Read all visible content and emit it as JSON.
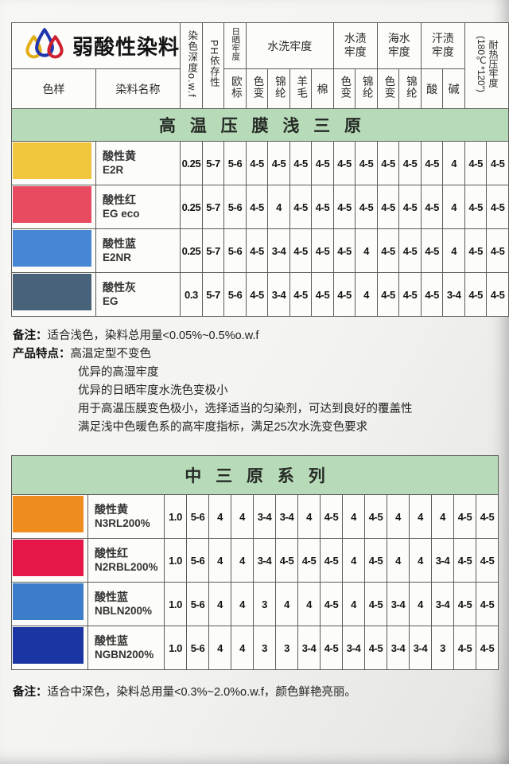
{
  "brand": {
    "name": "弱酸性染料"
  },
  "logo": {
    "drop_colors": [
      "#e2ae15",
      "#2036ad",
      "#cf2030"
    ]
  },
  "columns": {
    "sample": "色样",
    "name": "染料名称",
    "depth": "染色深度o.w.f",
    "ph": "PH依存性",
    "sun_group": "日晒牢度",
    "eu": "欧标",
    "wash_group": "水洗牢度",
    "color_change": "色变",
    "nylon": "锦纶",
    "wool": "羊毛",
    "cotton": "棉",
    "water_group": "水渍牢度",
    "sea_group": "海水牢度",
    "sweat_group": "汗渍牢度",
    "acid": "酸",
    "alkali": "碱",
    "heat": "耐热压牢度 (180℃*120\")"
  },
  "table1": {
    "banner": "高温压膜浅三原",
    "rows": [
      {
        "color": "#f0c63e",
        "name": "酸性黄",
        "code": "E2R",
        "values": [
          "0.25",
          "5-7",
          "5-6",
          "4-5",
          "4-5",
          "4-5",
          "4-5",
          "4-5",
          "4-5",
          "4-5",
          "4-5",
          "4-5",
          "4",
          "4-5",
          "4-5"
        ]
      },
      {
        "color": "#e84a60",
        "name": "酸性红",
        "code": "EG eco",
        "values": [
          "0.25",
          "5-7",
          "5-6",
          "4-5",
          "4",
          "4-5",
          "4-5",
          "4-5",
          "4-5",
          "4-5",
          "4-5",
          "4-5",
          "4",
          "4-5",
          "4-5"
        ]
      },
      {
        "color": "#4687d4",
        "name": "酸性蓝",
        "code": "E2NR",
        "values": [
          "0.25",
          "5-7",
          "5-6",
          "4-5",
          "3-4",
          "4-5",
          "4-5",
          "4-5",
          "4",
          "4-5",
          "4-5",
          "4-5",
          "4",
          "4-5",
          "4-5"
        ]
      },
      {
        "color": "#48627a",
        "name": "酸性灰",
        "code": "EG",
        "values": [
          "0.3",
          "5-7",
          "5-6",
          "4-5",
          "3-4",
          "4-5",
          "4-5",
          "4-5",
          "4",
          "4-5",
          "4-5",
          "4-5",
          "3-4",
          "4-5",
          "4-5"
        ]
      }
    ],
    "notes": {
      "remark_label": "备注：",
      "remark": "适合浅色，染料总用量<0.05%~0.5%o.w.f",
      "features_label": "产品特点：",
      "features": [
        "高温定型不变色",
        "优异的高湿牢度",
        "优异的日晒牢度水洗色变极小",
        "用于高温压膜变色极小，选择适当的匀染剂，可达到良好的覆盖性",
        "满足浅中色暖色系的高牢度指标，满足25次水洗变色要求"
      ]
    }
  },
  "table2": {
    "banner": "中三原系列",
    "rows": [
      {
        "color": "#ef8c1e",
        "name": "酸性黄",
        "code": "N3RL200%",
        "values": [
          "1.0",
          "5-6",
          "4",
          "4",
          "3-4",
          "3-4",
          "4",
          "4-5",
          "4",
          "4-5",
          "4",
          "4",
          "4",
          "4-5",
          "4-5"
        ]
      },
      {
        "color": "#e51748",
        "name": "酸性红",
        "code": "N2RBL200%",
        "values": [
          "1.0",
          "5-6",
          "4",
          "4",
          "3-4",
          "4-5",
          "4-5",
          "4-5",
          "4",
          "4-5",
          "4",
          "4",
          "3-4",
          "4-5",
          "4-5"
        ]
      },
      {
        "color": "#3d7cc9",
        "name": "酸性蓝",
        "code": "NBLN200%",
        "values": [
          "1.0",
          "5-6",
          "4",
          "4",
          "3",
          "4",
          "4",
          "4-5",
          "4",
          "4-5",
          "3-4",
          "4",
          "3-4",
          "4-5",
          "4-5"
        ]
      },
      {
        "color": "#1b36a3",
        "name": "酸性蓝",
        "code": "NGBN200%",
        "values": [
          "1.0",
          "5-6",
          "4",
          "4",
          "3",
          "3",
          "3-4",
          "4-5",
          "3-4",
          "4-5",
          "3-4",
          "3-4",
          "3",
          "4-5",
          "4-5"
        ]
      }
    ],
    "note_label": "备注：",
    "note": "适合中深色，染料总用量<0.3%~2.0%o.w.f，颜色鲜艳亮丽。"
  }
}
